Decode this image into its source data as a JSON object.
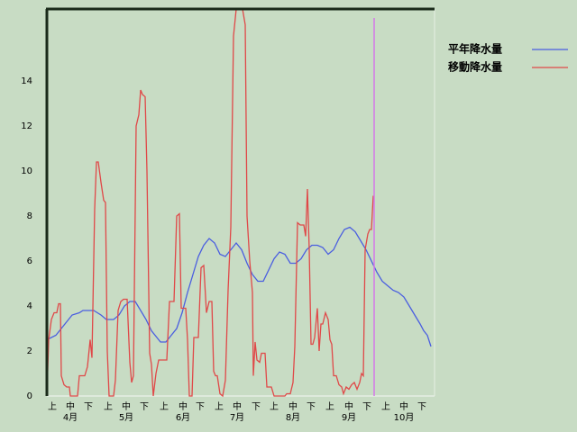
{
  "chart_data": {
    "type": "line",
    "xlim": [
      0,
      215
    ],
    "ylim": [
      0,
      17.2
    ],
    "yticks": [
      0,
      2,
      4,
      6,
      8,
      10,
      12,
      14
    ],
    "xticks": [
      {
        "value": 3,
        "label": "上"
      },
      {
        "value": 13,
        "label": "中"
      },
      {
        "value": 23,
        "label": "下"
      },
      {
        "value": 34,
        "label": "上"
      },
      {
        "value": 44,
        "label": "中"
      },
      {
        "value": 54,
        "label": "下"
      },
      {
        "value": 65,
        "label": "上"
      },
      {
        "value": 75.5,
        "label": "中"
      },
      {
        "value": 85,
        "label": "下"
      },
      {
        "value": 95.5,
        "label": "上"
      },
      {
        "value": 105.5,
        "label": "中"
      },
      {
        "value": 116,
        "label": "下"
      },
      {
        "value": 126,
        "label": "上"
      },
      {
        "value": 136.5,
        "label": "中"
      },
      {
        "value": 146.5,
        "label": "下"
      },
      {
        "value": 157,
        "label": "上"
      },
      {
        "value": 167.5,
        "label": "中"
      },
      {
        "value": 177.5,
        "label": "下"
      },
      {
        "value": 188,
        "label": "上"
      },
      {
        "value": 198,
        "label": "中"
      },
      {
        "value": 208,
        "label": "下"
      }
    ],
    "month_ticks": [
      {
        "value": 13,
        "label": "4月"
      },
      {
        "value": 44,
        "label": "5月"
      },
      {
        "value": 75.5,
        "label": "6月"
      },
      {
        "value": 105.5,
        "label": "7月"
      },
      {
        "value": 136.5,
        "label": "8月"
      },
      {
        "value": 167.5,
        "label": "9月"
      },
      {
        "value": 198,
        "label": "10月"
      }
    ],
    "current_day": 181.5,
    "current_day_color": "#d478e8",
    "series": [
      {
        "name": "平年降水量",
        "color": "#4a5ee0",
        "x": [
          0,
          5,
          10,
          14,
          18,
          20,
          26,
          30,
          33,
          37,
          40,
          43,
          46,
          49,
          52,
          55,
          58,
          61,
          63,
          66,
          69,
          72,
          75,
          78,
          81,
          84,
          87,
          90,
          93,
          96,
          99,
          102,
          105,
          108,
          111,
          114,
          117,
          120,
          123,
          126,
          129,
          132,
          135,
          138,
          141,
          144,
          147,
          150,
          153,
          156,
          159,
          162,
          165,
          168,
          171,
          174,
          177,
          180,
          183,
          186,
          189,
          192,
          195,
          198,
          201,
          204,
          207,
          209,
          211,
          213
        ],
        "values": [
          2.5,
          2.7,
          3.2,
          3.6,
          3.7,
          3.8,
          3.8,
          3.6,
          3.4,
          3.4,
          3.6,
          4.0,
          4.2,
          4.2,
          3.8,
          3.4,
          2.9,
          2.6,
          2.4,
          2.4,
          2.7,
          3.0,
          3.7,
          4.6,
          5.4,
          6.2,
          6.7,
          7.0,
          6.8,
          6.3,
          6.2,
          6.5,
          6.8,
          6.5,
          5.9,
          5.4,
          5.1,
          5.1,
          5.6,
          6.1,
          6.4,
          6.3,
          5.9,
          5.9,
          6.1,
          6.5,
          6.7,
          6.7,
          6.6,
          6.3,
          6.5,
          7.0,
          7.4,
          7.5,
          7.3,
          6.9,
          6.5,
          6.0,
          5.5,
          5.1,
          4.9,
          4.7,
          4.6,
          4.4,
          4.0,
          3.6,
          3.2,
          2.9,
          2.7,
          2.2
        ]
      },
      {
        "name": "移動降水量",
        "color": "#e04848",
        "x": [
          0,
          1,
          2.5,
          4,
          5.5,
          6.5,
          7.5,
          8,
          9.5,
          11,
          12.5,
          13,
          17,
          18,
          21,
          22.5,
          24,
          25,
          26.5,
          27.5,
          28.5,
          30,
          31.5,
          32.5,
          33.5,
          34.5,
          37,
          38,
          39.5,
          41,
          42.5,
          44.5,
          46,
          47,
          48,
          49.5,
          51,
          52,
          53,
          54.5,
          55.5,
          57,
          58,
          59,
          60.5,
          62,
          66.5,
          68,
          70.5,
          72,
          73.5,
          74.5,
          77,
          78,
          79,
          80.5,
          81.5,
          84,
          85.5,
          87,
          88.5,
          90,
          91.5,
          92.5,
          93.5,
          94.5,
          96,
          97.5,
          99,
          100.5,
          102,
          103.5,
          105,
          108.5,
          110,
          111,
          112.5,
          114,
          114.5,
          115.5,
          116.5,
          118,
          119,
          121,
          122,
          124.5,
          126,
          132,
          133,
          135,
          136.5,
          137.5,
          139,
          140.5,
          142.5,
          143.5,
          144.5,
          145.5,
          146.5,
          147.5,
          148.5,
          150,
          151,
          152,
          153,
          154.5,
          156,
          157,
          158,
          159,
          160.5,
          162,
          163.5,
          164.5,
          166,
          167.5,
          169,
          170.5,
          172,
          173.5,
          174.5,
          175.5,
          176.5,
          178,
          179,
          180,
          181
        ],
        "values": [
          0,
          2.5,
          3.4,
          3.7,
          3.7,
          4.1,
          4.1,
          0.9,
          0.5,
          0.4,
          0.4,
          0,
          0,
          0.9,
          0.9,
          1.3,
          2.5,
          1.7,
          8.3,
          10.4,
          10.4,
          9.5,
          8.7,
          8.6,
          2.0,
          0,
          0,
          0.7,
          3.8,
          4.2,
          4.3,
          4.3,
          1.5,
          0.6,
          0.9,
          12.0,
          12.5,
          13.6,
          13.4,
          13.3,
          10.0,
          1.9,
          1.4,
          0,
          1.0,
          1.6,
          1.6,
          4.2,
          4.2,
          8.0,
          8.1,
          3.9,
          3.9,
          2.5,
          0,
          0,
          2.6,
          2.6,
          5.7,
          5.8,
          3.7,
          4.2,
          4.2,
          1.1,
          0.9,
          0.9,
          0.1,
          0,
          0.7,
          4.7,
          7.5,
          16.0,
          17.2,
          17.2,
          16.5,
          8.0,
          6.0,
          4.6,
          0.9,
          2.4,
          1.6,
          1.5,
          1.9,
          1.9,
          0.4,
          0.4,
          0,
          0,
          0.1,
          0.1,
          0.6,
          2.2,
          7.7,
          7.6,
          7.6,
          7.1,
          9.2,
          6.5,
          2.3,
          2.3,
          2.6,
          3.9,
          2.0,
          3.2,
          3.2,
          3.7,
          3.4,
          2.5,
          2.3,
          0.9,
          0.9,
          0.5,
          0.4,
          0.1,
          0.4,
          0.3,
          0.5,
          0.6,
          0.3,
          0.6,
          1.0,
          0.9,
          6.5,
          7.2,
          7.4,
          7.4,
          8.9
        ]
      }
    ]
  }
}
